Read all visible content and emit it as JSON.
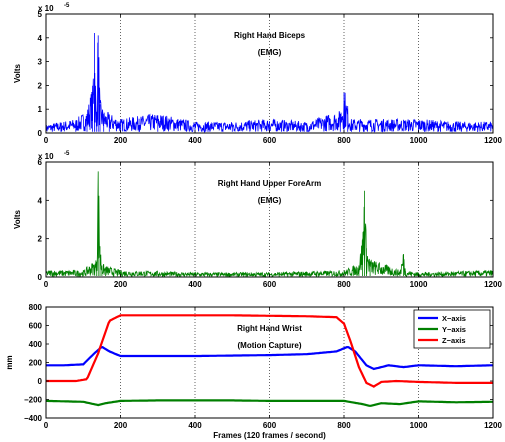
{
  "chart_data": [
    {
      "type": "line",
      "annotation_title": "Right Hand Biceps",
      "annotation_subtitle": "(EMG)",
      "ylabel": "Volts",
      "xlabel": "",
      "multiplier": "x 10",
      "multiplier_exp": "-5",
      "xlim": [
        0,
        1200
      ],
      "ylim": [
        0,
        5
      ],
      "xticks": [
        "0",
        "200",
        "400",
        "600",
        "800",
        "1000",
        "1200"
      ],
      "yticks": [
        "0",
        "1",
        "2",
        "3",
        "4",
        "5"
      ],
      "grid": "vertical dotted",
      "color": "#0000ff",
      "series": [
        {
          "x": [
            0,
            40,
            80,
            110,
            125,
            130,
            135,
            140,
            145,
            155,
            170,
            200,
            250,
            300,
            400,
            500,
            600,
            700,
            790,
            800,
            810,
            820,
            900,
            1000,
            1100,
            1200
          ],
          "y": [
            0.3,
            0.4,
            0.5,
            0.8,
            1.7,
            4.2,
            0.7,
            4.1,
            1.2,
            0.8,
            0.7,
            0.5,
            0.6,
            0.7,
            0.4,
            0.4,
            0.5,
            0.4,
            0.8,
            1.7,
            1.0,
            0.5,
            0.5,
            0.5,
            0.4,
            0.4
          ]
        }
      ]
    },
    {
      "type": "line",
      "annotation_title": "Right Hand Upper ForeArm",
      "annotation_subtitle": "(EMG)",
      "ylabel": "Volts",
      "xlabel": "",
      "multiplier": "x 10",
      "multiplier_exp": "-5",
      "xlim": [
        0,
        1200
      ],
      "ylim": [
        0,
        6
      ],
      "xticks": [
        "0",
        "200",
        "400",
        "600",
        "800",
        "1000",
        "1200"
      ],
      "yticks": [
        "0",
        "2",
        "4",
        "6"
      ],
      "grid": "vertical dotted",
      "color": "#007f00",
      "series": [
        {
          "x": [
            0,
            100,
            135,
            140,
            145,
            150,
            160,
            200,
            400,
            600,
            800,
            840,
            850,
            855,
            860,
            870,
            950,
            960,
            965,
            1000,
            1200
          ],
          "y": [
            0.3,
            0.3,
            0.8,
            5.5,
            1.6,
            0.6,
            0.5,
            0.3,
            0.2,
            0.2,
            0.3,
            0.6,
            2.0,
            4.5,
            1.5,
            0.8,
            0.3,
            1.2,
            0.3,
            0.2,
            0.3
          ]
        }
      ]
    },
    {
      "type": "line",
      "annotation_title": "Right Hand Wrist",
      "annotation_subtitle": "(Motion Capture)",
      "ylabel": "mm",
      "xlabel": "Frames (120 frames / second)",
      "xlim": [
        0,
        1200
      ],
      "ylim": [
        -400,
        800
      ],
      "xticks": [
        "0",
        "200",
        "400",
        "600",
        "800",
        "1000",
        "1200"
      ],
      "yticks": [
        "−400",
        "−200",
        "0",
        "200",
        "400",
        "600",
        "800"
      ],
      "grid": "vertical dotted",
      "legend_position": "top-right",
      "series": [
        {
          "name": "X−axis",
          "color": "#0000ff",
          "x": [
            0,
            50,
            100,
            130,
            150,
            170,
            200,
            300,
            400,
            500,
            600,
            700,
            780,
            810,
            830,
            860,
            880,
            920,
            960,
            1000,
            1100,
            1200
          ],
          "y": [
            170,
            170,
            180,
            300,
            370,
            320,
            270,
            270,
            270,
            275,
            280,
            290,
            320,
            370,
            320,
            170,
            130,
            170,
            150,
            170,
            160,
            170
          ]
        },
        {
          "name": "Y−axis",
          "color": "#007f00",
          "x": [
            0,
            100,
            140,
            160,
            200,
            300,
            400,
            500,
            600,
            700,
            800,
            850,
            870,
            900,
            950,
            1000,
            1100,
            1200
          ],
          "y": [
            -215,
            -225,
            -260,
            -240,
            -215,
            -210,
            -210,
            -210,
            -215,
            -215,
            -215,
            -250,
            -270,
            -240,
            -250,
            -220,
            -230,
            -225
          ],
          "_comment": ""
        },
        {
          "name": "Z−axis",
          "color": "#ff0000",
          "x": [
            0,
            80,
            110,
            140,
            170,
            200,
            300,
            400,
            500,
            600,
            700,
            780,
            800,
            820,
            840,
            860,
            880,
            900,
            940,
            1000,
            1100,
            1200
          ],
          "y": [
            0,
            0,
            20,
            300,
            650,
            710,
            710,
            710,
            710,
            705,
            700,
            690,
            620,
            400,
            150,
            -20,
            -60,
            -10,
            0,
            -10,
            -20,
            -20
          ]
        }
      ]
    }
  ]
}
